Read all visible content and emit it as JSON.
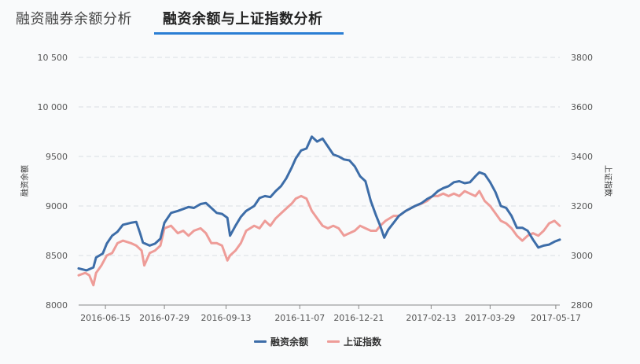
{
  "tabs": [
    {
      "label": "融资融券余额分析",
      "active": false
    },
    {
      "label": "融资余额与上证指数分析",
      "active": true
    }
  ],
  "colors": {
    "series1": "#3d6da8",
    "series2": "#ee9c98",
    "grid": "#d9dde3",
    "tab_underline": "#2b7ed4"
  },
  "chart_data": {
    "type": "line",
    "grid": true,
    "legend_position": "bottom-center",
    "ylabel_left": "融资余额",
    "ylabel_right": "上证指数",
    "ylim_left": [
      8000,
      10500
    ],
    "ylim_right": [
      2800,
      3800
    ],
    "yticks_left": [
      "8000",
      "8500",
      "9000",
      "9500",
      "10 000",
      "10 500"
    ],
    "yticks_right": [
      "2800",
      "3000",
      "3200",
      "3400",
      "3600",
      "3800"
    ],
    "xticks": [
      "2016-06-15",
      "2016-07-29",
      "2016-09-13",
      "2016-11-07",
      "2016-12-21",
      "2017-02-13",
      "2017-03-29",
      "2017-05-17"
    ],
    "series": [
      {
        "name": "融资余额",
        "axis": "left",
        "color": "#3d6da8",
        "points": [
          [
            "2016-05-26",
            8370
          ],
          [
            "2016-06-01",
            8350
          ],
          [
            "2016-06-06",
            8380
          ],
          [
            "2016-06-08",
            8480
          ],
          [
            "2016-06-13",
            8520
          ],
          [
            "2016-06-16",
            8620
          ],
          [
            "2016-06-20",
            8700
          ],
          [
            "2016-06-24",
            8740
          ],
          [
            "2016-06-28",
            8810
          ],
          [
            "2016-07-04",
            8830
          ],
          [
            "2016-07-08",
            8840
          ],
          [
            "2016-07-11",
            8720
          ],
          [
            "2016-07-13",
            8630
          ],
          [
            "2016-07-18",
            8600
          ],
          [
            "2016-07-22",
            8620
          ],
          [
            "2016-07-26",
            8670
          ],
          [
            "2016-07-29",
            8830
          ],
          [
            "2016-08-03",
            8930
          ],
          [
            "2016-08-08",
            8950
          ],
          [
            "2016-08-12",
            8970
          ],
          [
            "2016-08-16",
            8990
          ],
          [
            "2016-08-20",
            8980
          ],
          [
            "2016-08-25",
            9020
          ],
          [
            "2016-08-29",
            9030
          ],
          [
            "2016-09-02",
            8980
          ],
          [
            "2016-09-06",
            8930
          ],
          [
            "2016-09-10",
            8920
          ],
          [
            "2016-09-14",
            8880
          ],
          [
            "2016-09-16",
            8700
          ],
          [
            "2016-09-20",
            8800
          ],
          [
            "2016-09-24",
            8890
          ],
          [
            "2016-09-28",
            8950
          ],
          [
            "2016-10-04",
            9000
          ],
          [
            "2016-10-08",
            9080
          ],
          [
            "2016-10-12",
            9100
          ],
          [
            "2016-10-16",
            9090
          ],
          [
            "2016-10-20",
            9150
          ],
          [
            "2016-10-24",
            9200
          ],
          [
            "2016-10-28",
            9280
          ],
          [
            "2016-11-01",
            9390
          ],
          [
            "2016-11-04",
            9480
          ],
          [
            "2016-11-08",
            9560
          ],
          [
            "2016-11-12",
            9580
          ],
          [
            "2016-11-16",
            9700
          ],
          [
            "2016-11-20",
            9650
          ],
          [
            "2016-11-24",
            9680
          ],
          [
            "2016-11-28",
            9600
          ],
          [
            "2016-12-02",
            9520
          ],
          [
            "2016-12-06",
            9500
          ],
          [
            "2016-12-10",
            9470
          ],
          [
            "2016-12-14",
            9460
          ],
          [
            "2016-12-18",
            9400
          ],
          [
            "2016-12-22",
            9300
          ],
          [
            "2016-12-26",
            9250
          ],
          [
            "2016-12-30",
            9050
          ],
          [
            "2017-01-03",
            8900
          ],
          [
            "2017-01-06",
            8800
          ],
          [
            "2017-01-09",
            8680
          ],
          [
            "2017-01-12",
            8760
          ],
          [
            "2017-01-16",
            8830
          ],
          [
            "2017-01-20",
            8900
          ],
          [
            "2017-01-25",
            8950
          ],
          [
            "2017-02-01",
            9000
          ],
          [
            "2017-02-06",
            9030
          ],
          [
            "2017-02-10",
            9070
          ],
          [
            "2017-02-14",
            9100
          ],
          [
            "2017-02-18",
            9150
          ],
          [
            "2017-02-22",
            9180
          ],
          [
            "2017-02-26",
            9200
          ],
          [
            "2017-03-02",
            9240
          ],
          [
            "2017-03-06",
            9250
          ],
          [
            "2017-03-10",
            9230
          ],
          [
            "2017-03-14",
            9240
          ],
          [
            "2017-03-18",
            9300
          ],
          [
            "2017-03-21",
            9340
          ],
          [
            "2017-03-25",
            9320
          ],
          [
            "2017-03-29",
            9240
          ],
          [
            "2017-04-02",
            9140
          ],
          [
            "2017-04-06",
            9000
          ],
          [
            "2017-04-10",
            8980
          ],
          [
            "2017-04-14",
            8900
          ],
          [
            "2017-04-18",
            8780
          ],
          [
            "2017-04-22",
            8780
          ],
          [
            "2017-04-26",
            8750
          ],
          [
            "2017-04-30",
            8660
          ],
          [
            "2017-05-04",
            8580
          ],
          [
            "2017-05-08",
            8600
          ],
          [
            "2017-05-12",
            8610
          ],
          [
            "2017-05-16",
            8640
          ],
          [
            "2017-05-20",
            8660
          ]
        ]
      },
      {
        "name": "上证指数",
        "axis": "right",
        "color": "#ee9c98",
        "points": [
          [
            "2016-05-26",
            2920
          ],
          [
            "2016-05-31",
            2930
          ],
          [
            "2016-06-03",
            2920
          ],
          [
            "2016-06-06",
            2880
          ],
          [
            "2016-06-08",
            2930
          ],
          [
            "2016-06-12",
            2960
          ],
          [
            "2016-06-16",
            3000
          ],
          [
            "2016-06-20",
            3010
          ],
          [
            "2016-06-24",
            3050
          ],
          [
            "2016-06-28",
            3060
          ],
          [
            "2016-07-04",
            3050
          ],
          [
            "2016-07-08",
            3040
          ],
          [
            "2016-07-12",
            3020
          ],
          [
            "2016-07-14",
            2960
          ],
          [
            "2016-07-18",
            3010
          ],
          [
            "2016-07-22",
            3020
          ],
          [
            "2016-07-26",
            3040
          ],
          [
            "2016-07-29",
            3110
          ],
          [
            "2016-08-03",
            3120
          ],
          [
            "2016-08-08",
            3090
          ],
          [
            "2016-08-12",
            3100
          ],
          [
            "2016-08-16",
            3080
          ],
          [
            "2016-08-20",
            3100
          ],
          [
            "2016-08-25",
            3110
          ],
          [
            "2016-08-29",
            3090
          ],
          [
            "2016-09-02",
            3050
          ],
          [
            "2016-09-06",
            3050
          ],
          [
            "2016-09-10",
            3040
          ],
          [
            "2016-09-14",
            2980
          ],
          [
            "2016-09-16",
            3000
          ],
          [
            "2016-09-20",
            3020
          ],
          [
            "2016-09-24",
            3050
          ],
          [
            "2016-09-28",
            3100
          ],
          [
            "2016-10-04",
            3120
          ],
          [
            "2016-10-08",
            3110
          ],
          [
            "2016-10-12",
            3140
          ],
          [
            "2016-10-16",
            3120
          ],
          [
            "2016-10-20",
            3150
          ],
          [
            "2016-10-24",
            3170
          ],
          [
            "2016-10-28",
            3190
          ],
          [
            "2016-11-01",
            3210
          ],
          [
            "2016-11-04",
            3230
          ],
          [
            "2016-11-08",
            3240
          ],
          [
            "2016-11-12",
            3230
          ],
          [
            "2016-11-16",
            3180
          ],
          [
            "2016-11-20",
            3150
          ],
          [
            "2016-11-24",
            3120
          ],
          [
            "2016-11-28",
            3110
          ],
          [
            "2016-12-02",
            3120
          ],
          [
            "2016-12-06",
            3110
          ],
          [
            "2016-12-10",
            3080
          ],
          [
            "2016-12-14",
            3090
          ],
          [
            "2016-12-18",
            3100
          ],
          [
            "2016-12-22",
            3120
          ],
          [
            "2016-12-26",
            3110
          ],
          [
            "2016-12-30",
            3100
          ],
          [
            "2017-01-03",
            3100
          ],
          [
            "2017-01-06",
            3120
          ],
          [
            "2017-01-10",
            3140
          ],
          [
            "2017-01-16",
            3160
          ],
          [
            "2017-01-20",
            3160
          ],
          [
            "2017-01-25",
            3180
          ],
          [
            "2017-02-01",
            3200
          ],
          [
            "2017-02-06",
            3210
          ],
          [
            "2017-02-10",
            3220
          ],
          [
            "2017-02-14",
            3240
          ],
          [
            "2017-02-18",
            3240
          ],
          [
            "2017-02-22",
            3250
          ],
          [
            "2017-02-26",
            3240
          ],
          [
            "2017-03-02",
            3250
          ],
          [
            "2017-03-06",
            3240
          ],
          [
            "2017-03-10",
            3260
          ],
          [
            "2017-03-14",
            3250
          ],
          [
            "2017-03-18",
            3240
          ],
          [
            "2017-03-21",
            3260
          ],
          [
            "2017-03-25",
            3220
          ],
          [
            "2017-03-29",
            3200
          ],
          [
            "2017-04-02",
            3170
          ],
          [
            "2017-04-06",
            3140
          ],
          [
            "2017-04-10",
            3130
          ],
          [
            "2017-04-14",
            3110
          ],
          [
            "2017-04-18",
            3080
          ],
          [
            "2017-04-22",
            3060
          ],
          [
            "2017-04-26",
            3080
          ],
          [
            "2017-04-30",
            3090
          ],
          [
            "2017-05-04",
            3080
          ],
          [
            "2017-05-08",
            3100
          ],
          [
            "2017-05-12",
            3130
          ],
          [
            "2017-05-16",
            3140
          ],
          [
            "2017-05-20",
            3120
          ]
        ]
      }
    ]
  }
}
